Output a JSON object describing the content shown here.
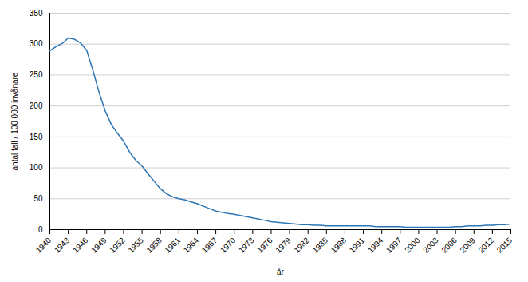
{
  "chart_data": {
    "type": "line",
    "xlabel": "år",
    "ylabel": "antal fall / 100 000 invånare",
    "color": "#2E75B6",
    "x": [
      1940,
      1941,
      1942,
      1943,
      1944,
      1945,
      1946,
      1947,
      1948,
      1949,
      1950,
      1951,
      1952,
      1953,
      1954,
      1955,
      1956,
      1957,
      1958,
      1959,
      1960,
      1961,
      1962,
      1963,
      1964,
      1965,
      1966,
      1967,
      1968,
      1969,
      1970,
      1971,
      1972,
      1973,
      1974,
      1975,
      1976,
      1977,
      1978,
      1979,
      1980,
      1981,
      1982,
      1983,
      1984,
      1985,
      1986,
      1987,
      1988,
      1989,
      1990,
      1991,
      1992,
      1993,
      1994,
      1995,
      1996,
      1997,
      1998,
      1999,
      2000,
      2001,
      2002,
      2003,
      2004,
      2005,
      2006,
      2007,
      2008,
      2009,
      2010,
      2011,
      2012,
      2013,
      2014,
      2015
    ],
    "values": [
      289,
      296,
      301,
      310,
      308,
      302,
      290,
      258,
      222,
      192,
      170,
      156,
      143,
      125,
      112,
      103,
      90,
      78,
      66,
      58,
      53,
      50,
      48,
      45,
      42,
      38,
      34,
      30,
      28,
      26,
      25,
      23,
      21,
      19,
      17,
      15,
      13,
      12,
      11,
      10,
      9,
      8,
      8,
      7,
      7,
      6,
      6,
      6,
      6,
      6,
      6,
      6,
      6,
      5,
      5,
      5,
      5,
      5,
      4,
      4,
      4,
      4,
      4,
      4,
      4,
      4,
      5,
      5,
      6,
      6,
      6,
      7,
      7,
      8,
      8,
      9
    ],
    "xlim": [
      1940,
      2015
    ],
    "xticks": [
      1940,
      1943,
      1946,
      1949,
      1952,
      1955,
      1958,
      1961,
      1964,
      1967,
      1970,
      1973,
      1976,
      1979,
      1982,
      1985,
      1988,
      1991,
      1994,
      1997,
      2000,
      2003,
      2006,
      2009,
      2012,
      2015
    ],
    "ylim": [
      0,
      350
    ],
    "yticks": [
      0,
      50,
      100,
      150,
      200,
      250,
      300,
      350
    ],
    "grid": true
  }
}
